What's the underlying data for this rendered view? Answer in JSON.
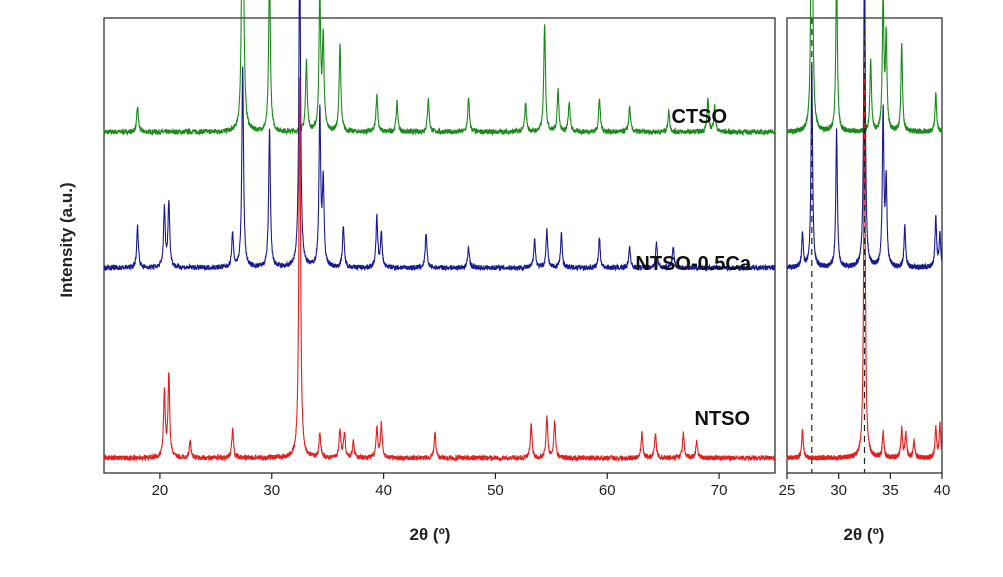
{
  "chart_data": [
    {
      "type": "line",
      "panel": "main",
      "xlabel": "2θ (º)",
      "ylabel": "Intensity (a.u.)",
      "xlim": [
        15,
        75
      ],
      "xticks": [
        20,
        30,
        40,
        50,
        60,
        70
      ],
      "yticks_shown": false,
      "series": [
        {
          "name": "CTSO",
          "color": "#1a8a1a",
          "baseline": 0.78,
          "peaks": [
            [
              18.0,
              0.06
            ],
            [
              27.4,
              0.85
            ],
            [
              29.8,
              0.39
            ],
            [
              33.1,
              0.17
            ],
            [
              34.3,
              0.32
            ],
            [
              34.6,
              0.22
            ],
            [
              36.1,
              0.21
            ],
            [
              39.4,
              0.09
            ],
            [
              41.2,
              0.07
            ],
            [
              44.0,
              0.08
            ],
            [
              47.6,
              0.08
            ],
            [
              52.7,
              0.07
            ],
            [
              54.4,
              0.26
            ],
            [
              55.6,
              0.1
            ],
            [
              56.6,
              0.07
            ],
            [
              59.3,
              0.08
            ],
            [
              62.0,
              0.06
            ],
            [
              65.5,
              0.05
            ],
            [
              69.0,
              0.08
            ],
            [
              69.6,
              0.06
            ]
          ]
        },
        {
          "name": "NTSO-0.5Ca",
          "color": "#1a1a8f",
          "baseline": 0.455,
          "peaks": [
            [
              18.0,
              0.1
            ],
            [
              20.4,
              0.14
            ],
            [
              20.8,
              0.16
            ],
            [
              26.5,
              0.08
            ],
            [
              27.4,
              0.48
            ],
            [
              29.8,
              0.33
            ],
            [
              32.5,
              0.79
            ],
            [
              34.3,
              0.37
            ],
            [
              34.6,
              0.2
            ],
            [
              36.4,
              0.1
            ],
            [
              39.4,
              0.12
            ],
            [
              39.8,
              0.08
            ],
            [
              43.8,
              0.08
            ],
            [
              47.6,
              0.05
            ],
            [
              53.5,
              0.07
            ],
            [
              54.6,
              0.09
            ],
            [
              55.9,
              0.08
            ],
            [
              59.3,
              0.07
            ],
            [
              62.0,
              0.05
            ],
            [
              64.4,
              0.06
            ],
            [
              65.9,
              0.05
            ]
          ]
        },
        {
          "name": "NTSO",
          "color": "#e02020",
          "baseline": 0.0,
          "peaks": [
            [
              20.4,
              0.16
            ],
            [
              20.8,
              0.2
            ],
            [
              22.7,
              0.04
            ],
            [
              26.5,
              0.07
            ],
            [
              32.5,
              0.91
            ],
            [
              34.3,
              0.06
            ],
            [
              36.1,
              0.07
            ],
            [
              36.5,
              0.06
            ],
            [
              37.3,
              0.04
            ],
            [
              39.4,
              0.07
            ],
            [
              39.8,
              0.08
            ],
            [
              44.6,
              0.06
            ],
            [
              53.2,
              0.08
            ],
            [
              54.6,
              0.1
            ],
            [
              55.3,
              0.09
            ],
            [
              63.1,
              0.06
            ],
            [
              64.3,
              0.06
            ],
            [
              66.8,
              0.06
            ],
            [
              68.0,
              0.04
            ]
          ]
        }
      ]
    },
    {
      "type": "line",
      "panel": "zoom",
      "xlabel": "2θ (º)",
      "xlim": [
        25,
        40
      ],
      "xticks": [
        25,
        30,
        35,
        40
      ],
      "dashed_reference_lines": [
        27.4,
        32.5
      ],
      "series": [
        {
          "name": "CTSO",
          "color": "#1a8a1a",
          "baseline": 0.78
        },
        {
          "name": "NTSO-0.5Ca",
          "color": "#1a1a8f",
          "baseline": 0.455
        },
        {
          "name": "NTSO",
          "color": "#e02020",
          "baseline": 0.0
        }
      ]
    }
  ]
}
